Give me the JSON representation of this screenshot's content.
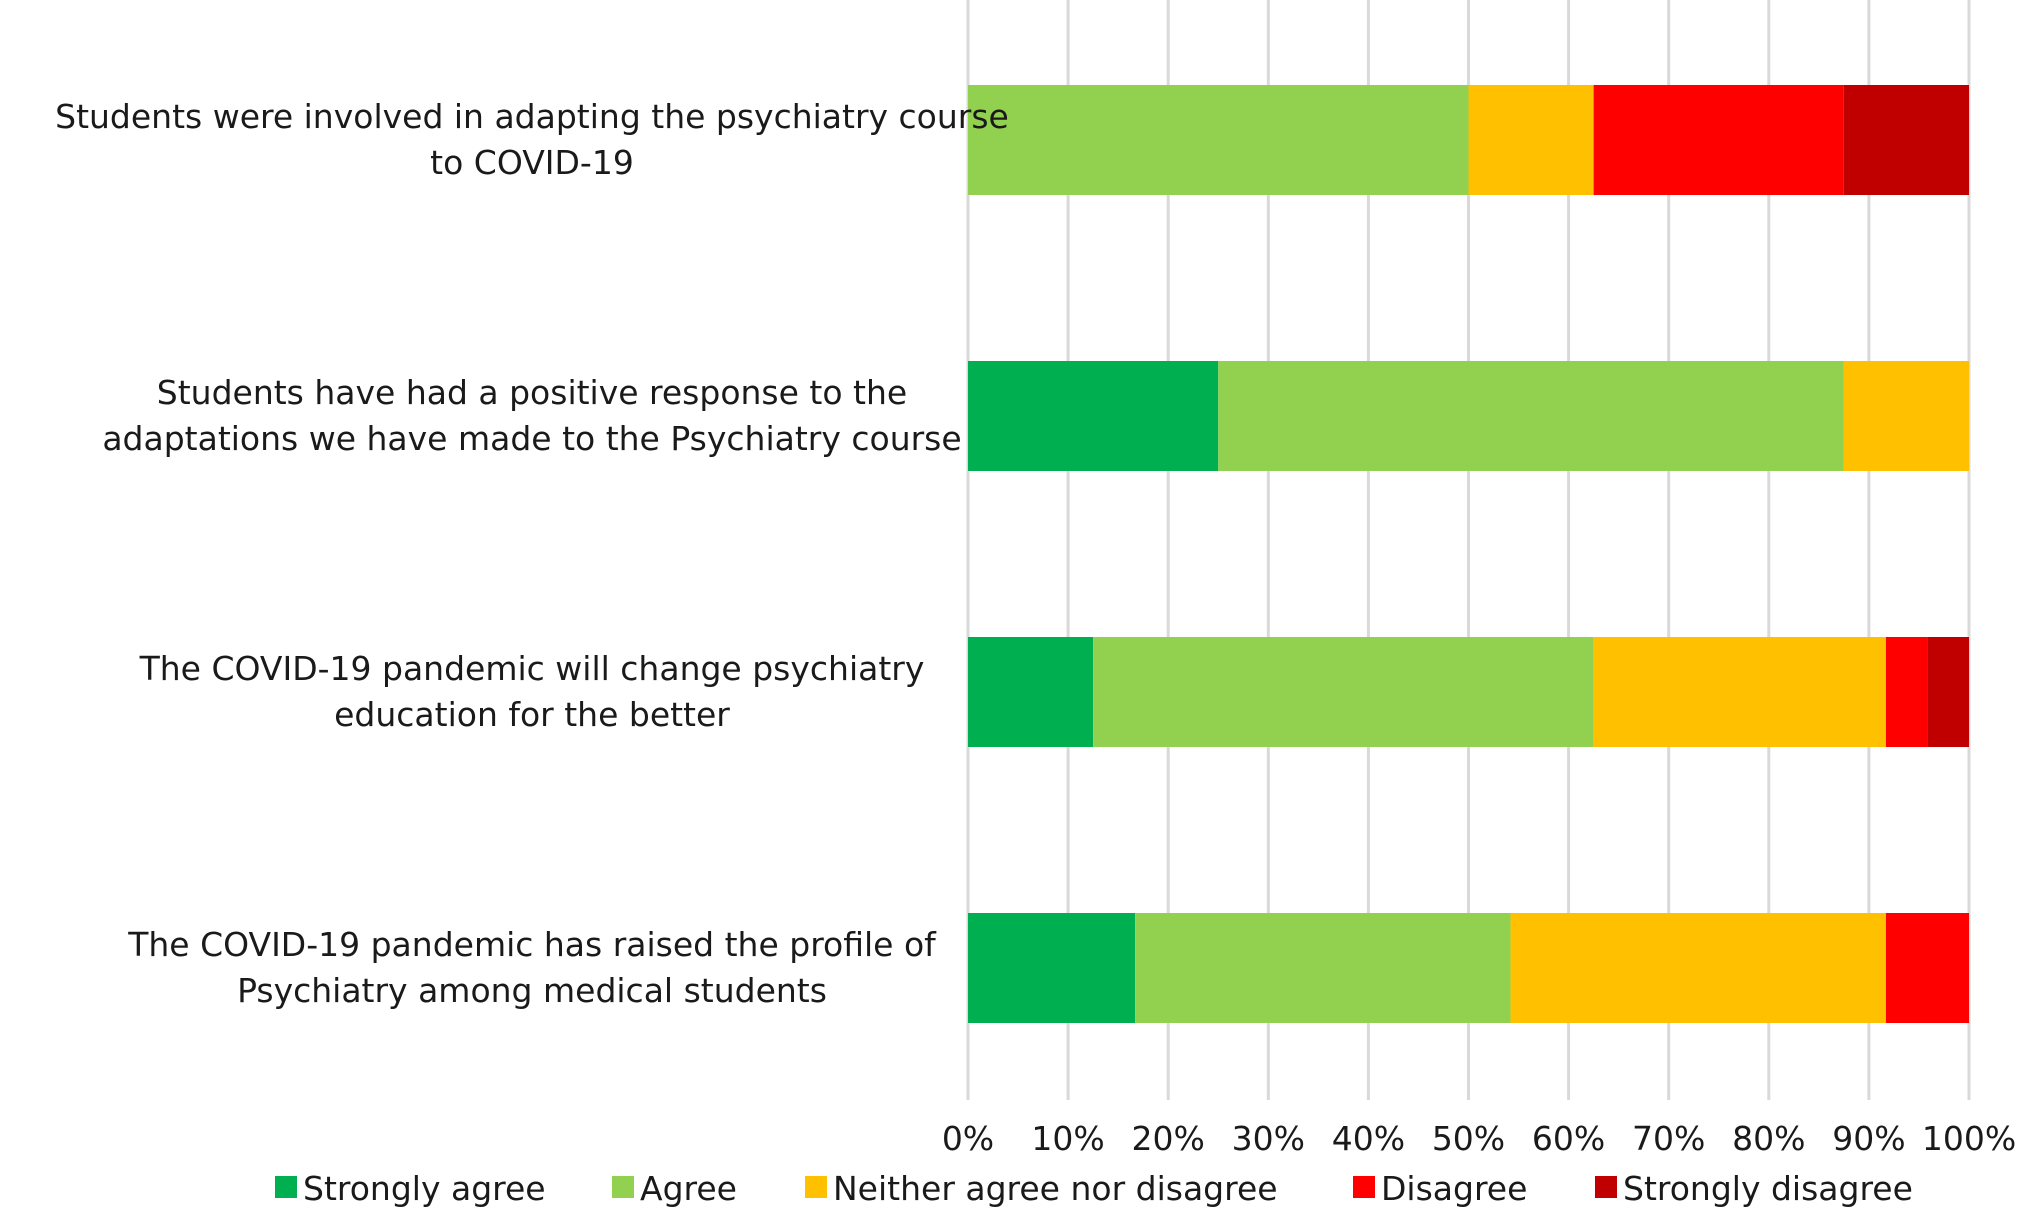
{
  "chart_data": {
    "type": "bar",
    "orientation": "horizontal",
    "stacked": true,
    "normalized": true,
    "categories": [
      [
        "Students were involved in adapting the psychiatry course",
        "to COVID-19"
      ],
      [
        "Students have had a positive response to  the",
        "adaptations we have made to the Psychiatry course"
      ],
      [
        "The COVID-19 pandemic will change psychiatry",
        "education for the better"
      ],
      [
        "The COVID-19 pandemic has raised the profile of",
        "Psychiatry among medical students"
      ]
    ],
    "series": [
      {
        "name": "Strongly agree",
        "color": "#00b050",
        "values": [
          0,
          25,
          12.5,
          16.7
        ]
      },
      {
        "name": "Agree",
        "color": "#92d050",
        "values": [
          50,
          62.5,
          50,
          37.5
        ]
      },
      {
        "name": "Neither agree nor disagree",
        "color": "#ffc000",
        "values": [
          12.5,
          12.5,
          29.2,
          37.5
        ]
      },
      {
        "name": "Disagree",
        "color": "#ff0000",
        "values": [
          25,
          0,
          4.2,
          8.3
        ]
      },
      {
        "name": "Strongly disagree",
        "color": "#c00000",
        "values": [
          12.5,
          0,
          4.1,
          0
        ]
      }
    ],
    "x_ticks": [
      "0%",
      "10%",
      "20%",
      "30%",
      "40%",
      "50%",
      "60%",
      "70%",
      "80%",
      "90%",
      "100%"
    ],
    "xlim": [
      0,
      100
    ],
    "grid": true,
    "legend_position": "bottom"
  }
}
